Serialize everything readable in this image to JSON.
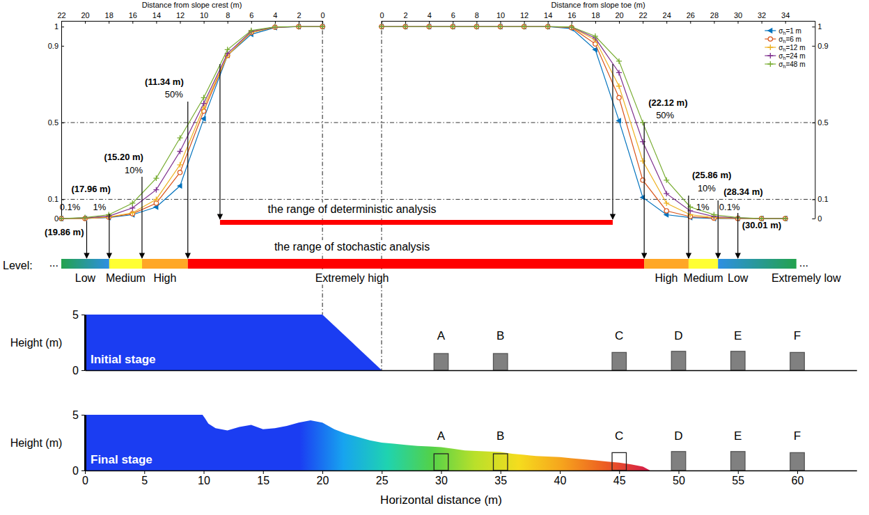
{
  "chart_data": [
    {
      "type": "line",
      "x_label": "Distance from slope crest (m)",
      "x": [
        22,
        20,
        18,
        16,
        14,
        12,
        10,
        8,
        6,
        4,
        2,
        0
      ],
      "xlim": [
        22,
        0
      ],
      "xticks": [
        22,
        20,
        18,
        16,
        14,
        12,
        10,
        8,
        6,
        4,
        2,
        0
      ],
      "ylim": [
        0,
        1.03
      ],
      "yticks": [
        0,
        0.1,
        0.5,
        0.9,
        1
      ],
      "series": [
        {
          "color": "#0072BD",
          "marker": "triangle-left",
          "values": [
            0,
            0,
            0.005,
            0.02,
            0.06,
            0.17,
            0.52,
            0.85,
            0.96,
            0.995,
            1,
            1
          ]
        },
        {
          "color": "#D95319",
          "marker": "circle",
          "values": [
            0,
            0,
            0.007,
            0.025,
            0.08,
            0.24,
            0.56,
            0.85,
            0.97,
            0.997,
            1,
            1
          ]
        },
        {
          "color": "#EDB120",
          "marker": "plus",
          "values": [
            0,
            0,
            0.008,
            0.03,
            0.1,
            0.28,
            0.58,
            0.85,
            0.97,
            0.998,
            1,
            1
          ]
        },
        {
          "color": "#7E2F8E",
          "marker": "plus",
          "values": [
            0,
            0.003,
            0.012,
            0.055,
            0.15,
            0.35,
            0.6,
            0.86,
            0.975,
            0.998,
            1,
            1
          ]
        },
        {
          "color": "#77AC30",
          "marker": "plus",
          "values": [
            0,
            0.005,
            0.02,
            0.08,
            0.21,
            0.42,
            0.63,
            0.88,
            0.98,
            0.999,
            1,
            1
          ]
        }
      ],
      "hlines": [
        0.1,
        0.5
      ],
      "vlines": [
        0
      ],
      "annotations": [
        {
          "x": 11.34,
          "label": "(11.34 m)",
          "probability_label": "50%"
        },
        {
          "x": 15.2,
          "label": "(15.20 m)",
          "probability_label": "10%"
        },
        {
          "x": 17.96,
          "label": "(17.96 m)",
          "probability_label": "1%"
        },
        {
          "x": 19.86,
          "label": "(19.86 m)",
          "probability_label": "0.1%"
        }
      ]
    },
    {
      "type": "line",
      "x_label": "Distance from slope toe (m)",
      "x": [
        0,
        2,
        4,
        6,
        8,
        10,
        12,
        14,
        16,
        18,
        20,
        22,
        24,
        26,
        28,
        30,
        32,
        34
      ],
      "xlim": [
        0,
        36.5
      ],
      "xticks": [
        0,
        2,
        4,
        6,
        8,
        10,
        12,
        14,
        16,
        18,
        20,
        22,
        24,
        26,
        28,
        30,
        32,
        34
      ],
      "ylim": [
        0,
        1.03
      ],
      "yticks": [
        0,
        0.1,
        0.5,
        0.9,
        1
      ],
      "legend": "top-right",
      "series": [
        {
          "name": "σh=1 m",
          "color": "#0072BD",
          "marker": "triangle-left",
          "values": [
            1,
            1,
            1,
            1,
            1,
            1,
            1,
            1,
            0.99,
            0.88,
            0.51,
            0.11,
            0.02,
            0.005,
            0,
            0,
            0,
            0
          ]
        },
        {
          "name": "σh=6 m",
          "color": "#D95319",
          "marker": "circle",
          "values": [
            1,
            1,
            1,
            1,
            1,
            1,
            1,
            1,
            0.995,
            0.91,
            0.63,
            0.2,
            0.04,
            0.01,
            0.002,
            0,
            0,
            0
          ]
        },
        {
          "name": "σh=12 m",
          "color": "#EDB120",
          "marker": "plus",
          "values": [
            1,
            1,
            1,
            1,
            1,
            1,
            1,
            1,
            0.997,
            0.93,
            0.69,
            0.3,
            0.08,
            0.02,
            0.005,
            0.001,
            0,
            0
          ]
        },
        {
          "name": "σh=24 m",
          "color": "#7E2F8E",
          "marker": "plus",
          "values": [
            1,
            1,
            1,
            1,
            1,
            1,
            1,
            1,
            0.998,
            0.94,
            0.76,
            0.4,
            0.13,
            0.04,
            0.01,
            0.003,
            0,
            0
          ]
        },
        {
          "name": "σh=48 m",
          "color": "#77AC30",
          "marker": "plus",
          "values": [
            1,
            1,
            1,
            1,
            1,
            1,
            1,
            1,
            0.999,
            0.95,
            0.82,
            0.5,
            0.2,
            0.06,
            0.02,
            0.005,
            0,
            0
          ]
        }
      ],
      "hlines": [
        0.1,
        0.5
      ],
      "vlines": [
        0
      ],
      "annotations": [
        {
          "x": 22.12,
          "label": "(22.12 m)",
          "probability_label": "50%"
        },
        {
          "x": 25.86,
          "label": "(25.86 m)",
          "probability_label": "10%"
        },
        {
          "x": 28.34,
          "label": "(28.34 m)",
          "probability_label": "1%"
        },
        {
          "x": 30.01,
          "label": "(30.01 m)",
          "probability_label": "0.1%"
        }
      ]
    }
  ],
  "ranges": {
    "deterministic": {
      "label": "the range of deterministic analysis",
      "from_crest": 8.63,
      "from_toe": 19.47,
      "color": "#ff0000"
    },
    "stochastic": {
      "label": "the range of stochastic analysis"
    }
  },
  "levels": {
    "title": "Level:",
    "ellipsis": "...",
    "labels": [
      "Low",
      "Medium",
      "High",
      "Extremely high",
      "High",
      "Medium",
      "Low",
      "Extremely low"
    ],
    "colors": [
      "#23a24d",
      "#2e8fe3",
      "#ffff33",
      "#ffa726",
      "#ff0000"
    ]
  },
  "stages": [
    {
      "label": "Initial stage",
      "y_label": "Height (m)",
      "xlim": [
        0,
        65
      ],
      "ylim": [
        0,
        5
      ],
      "yticks": [
        0,
        5
      ],
      "tick_labels": "y",
      "color": "#1b3df2",
      "profile": {
        "x": [
          0,
          0,
          20,
          25
        ],
        "y": [
          0,
          5,
          5,
          0
        ]
      },
      "building_width": 1.2,
      "buildings": [
        {
          "label": "A",
          "x": 30,
          "height": 1.5,
          "color": "#808080"
        },
        {
          "label": "B",
          "x": 35,
          "height": 1.5,
          "color": "#808080"
        },
        {
          "label": "C",
          "x": 45,
          "height": 1.6,
          "color": "#808080"
        },
        {
          "label": "D",
          "x": 50,
          "height": 1.7,
          "color": "#808080"
        },
        {
          "label": "E",
          "x": 55,
          "height": 1.7,
          "color": "#808080"
        },
        {
          "label": "F",
          "x": 60,
          "height": 1.6,
          "color": "#808080"
        }
      ]
    },
    {
      "label": "Final stage",
      "y_label": "Height (m)",
      "x_label": "Horizontal distance (m)",
      "xlim": [
        0,
        65
      ],
      "ylim": [
        0,
        5
      ],
      "yticks": [
        0,
        5
      ],
      "xticks": [
        0,
        5,
        10,
        15,
        20,
        25,
        30,
        35,
        40,
        45,
        50,
        55,
        60
      ],
      "colors": [
        "#1b3df2",
        "#1b3df2",
        "#17a4ef",
        "#1fd3b0",
        "#52d14a",
        "#b9e02a",
        "#f5dc1e",
        "#f6a31d",
        "#ec5b22",
        "#d3194a"
      ],
      "profile": {
        "x": [
          0,
          0,
          9.9,
          10.1,
          10.4,
          11,
          12,
          13,
          14,
          15,
          16,
          17,
          18,
          19,
          20,
          21,
          22,
          23,
          24,
          25,
          26,
          27,
          28,
          29,
          30,
          31,
          32,
          33,
          34,
          35,
          36,
          37,
          38,
          39,
          40,
          41,
          42,
          43,
          44,
          45,
          46,
          47,
          47.6
        ],
        "y": [
          0,
          5,
          5,
          4.7,
          4.2,
          3.8,
          3.6,
          3.9,
          4.1,
          3.7,
          3.8,
          4.0,
          4.3,
          4.5,
          4.3,
          3.7,
          3.3,
          3.0,
          2.7,
          2.5,
          2.4,
          2.3,
          2.2,
          2.15,
          2.1,
          1.95,
          1.8,
          1.75,
          1.7,
          1.65,
          1.5,
          1.4,
          1.3,
          1.25,
          1.2,
          1.1,
          1.0,
          0.9,
          0.8,
          0.7,
          0.55,
          0.35,
          0
        ]
      },
      "building_width": 1.2,
      "buildings": [
        {
          "label": "A",
          "x": 30,
          "height": 1.5,
          "color": "none"
        },
        {
          "label": "B",
          "x": 35,
          "height": 1.5,
          "color": "none"
        },
        {
          "label": "C",
          "x": 45,
          "height": 1.6,
          "color": "none"
        },
        {
          "label": "D",
          "x": 50,
          "height": 1.7,
          "color": "#808080"
        },
        {
          "label": "E",
          "x": 55,
          "height": 1.7,
          "color": "#808080"
        },
        {
          "label": "F",
          "x": 60,
          "height": 1.6,
          "color": "#808080"
        }
      ]
    }
  ]
}
